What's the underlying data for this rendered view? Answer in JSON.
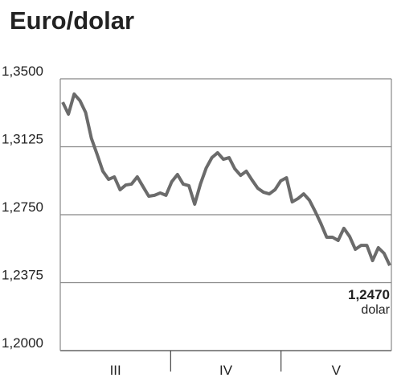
{
  "chart_data": {
    "type": "line",
    "title": "Euro/dolar",
    "periods": [
      "III",
      "IV",
      "V"
    ],
    "series": [
      {
        "name": null,
        "color": "#6b6b6b",
        "values": [
          1.3371,
          1.3305,
          1.3416,
          1.338,
          1.3314,
          1.3172,
          1.3083,
          1.299,
          1.2945,
          1.2959,
          1.2888,
          1.2914,
          1.2919,
          1.2959,
          1.2905,
          1.2852,
          1.2857,
          1.287,
          1.2857,
          1.2932,
          1.2972,
          1.2919,
          1.291,
          1.2808,
          1.2919,
          1.3007,
          1.3065,
          1.3092,
          1.3056,
          1.3065,
          1.3003,
          1.2967,
          1.299,
          1.2941,
          1.2896,
          1.2874,
          1.2865,
          1.2888,
          1.2937,
          1.2954,
          1.2821,
          1.2839,
          1.2865,
          1.283,
          1.2768,
          1.2701,
          1.2626,
          1.2626,
          1.2608,
          1.2675,
          1.263,
          1.2559,
          1.2581,
          1.2581,
          1.2497,
          1.2568,
          1.2537,
          1.247
        ],
        "value_labels": [
          null,
          null,
          null,
          null,
          null,
          null,
          null,
          null,
          null,
          null,
          null,
          null,
          null,
          null,
          null,
          null,
          null,
          null,
          null,
          null,
          null,
          null,
          null,
          null,
          null,
          null,
          null,
          null,
          null,
          null,
          null,
          null,
          null,
          null,
          null,
          null,
          null,
          null,
          null,
          null,
          null,
          null,
          null,
          null,
          null,
          null,
          null,
          null,
          null,
          null,
          null,
          null,
          null,
          null,
          null,
          null,
          null,
          "1,2470"
        ]
      }
    ],
    "unit_label": "dolar",
    "ylim": [
      1.2,
      1.35
    ],
    "yticks": [
      {
        "value": 1.2,
        "label": "1,2000"
      },
      {
        "value": 1.2375,
        "label": "1,2375"
      },
      {
        "value": 1.275,
        "label": "1,2750"
      },
      {
        "value": 1.3125,
        "label": "1,3125"
      },
      {
        "value": 1.35,
        "label": "1,3500"
      }
    ],
    "grid": true
  }
}
